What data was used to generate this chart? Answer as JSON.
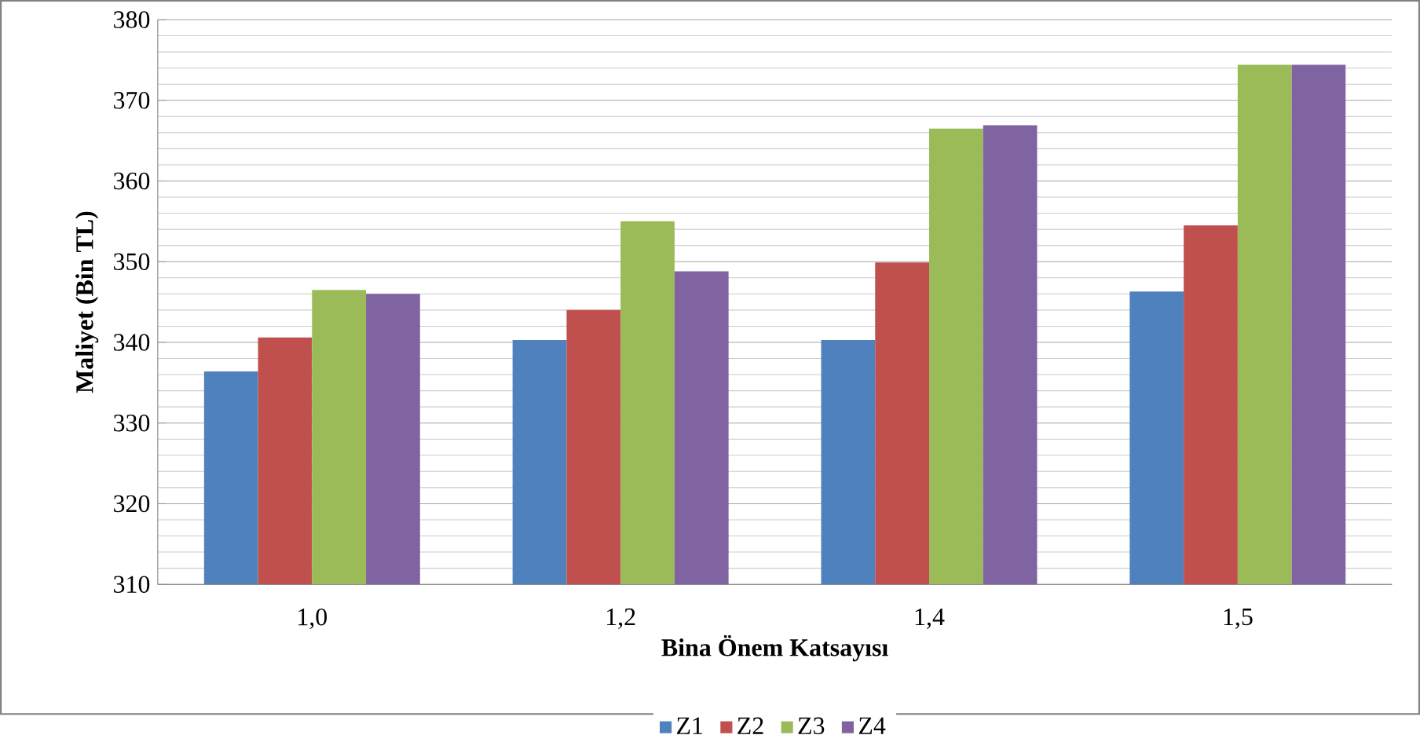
{
  "chart_data": {
    "type": "bar",
    "xlabel": "Bina Önem Katsayısı",
    "ylabel": "Maliyet (Bin TL)",
    "categories": [
      "1,0",
      "1,2",
      "1,4",
      "1,5"
    ],
    "series": [
      {
        "name": "Z1",
        "color": "#4f81bd",
        "values": [
          336.4,
          340.3,
          340.3,
          346.3
        ]
      },
      {
        "name": "Z2",
        "color": "#c0504d",
        "values": [
          340.6,
          344.0,
          349.9,
          354.5
        ]
      },
      {
        "name": "Z3",
        "color": "#9bbb59",
        "values": [
          346.5,
          355.0,
          366.5,
          374.4
        ]
      },
      {
        "name": "Z4",
        "color": "#8064a2",
        "values": [
          346.0,
          348.8,
          366.9,
          374.4
        ]
      }
    ],
    "ylim": [
      310,
      380
    ],
    "yticks": [
      310,
      320,
      330,
      340,
      350,
      360,
      370,
      380
    ],
    "grid": "y",
    "legend": "bottom"
  }
}
